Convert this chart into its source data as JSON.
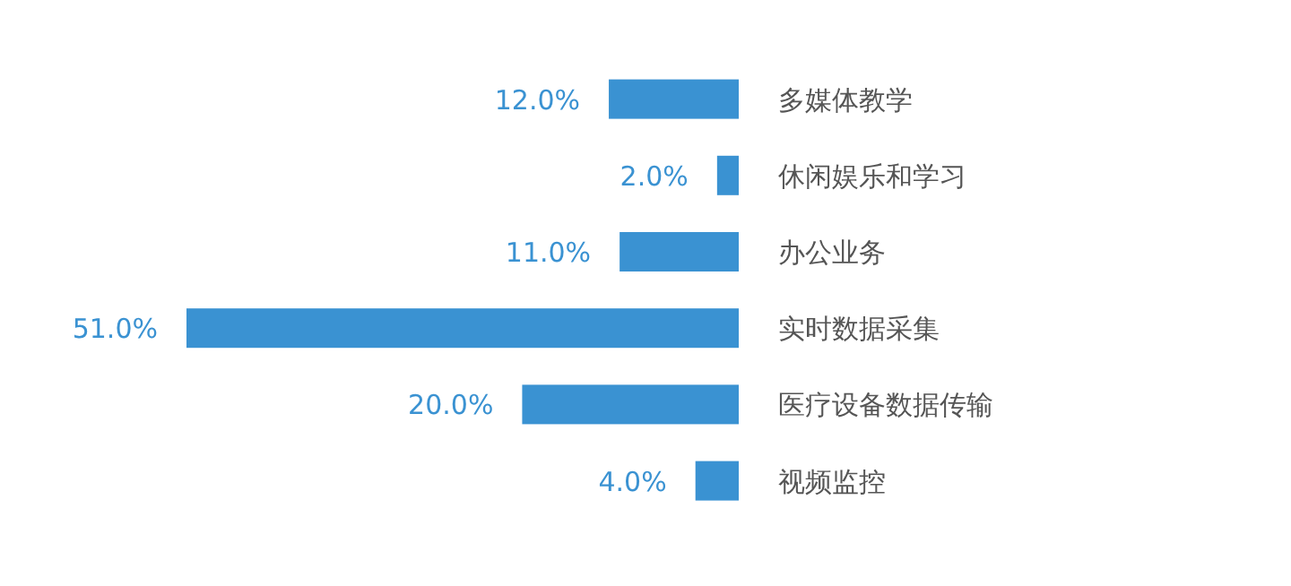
{
  "chart_data": {
    "type": "bar",
    "orientation": "horizontal",
    "categories": [
      "多媒体教学",
      "休闲娱乐和学习",
      "办公业务",
      "实时数据采集",
      "医疗设备数据传输",
      "视频监控"
    ],
    "values": [
      12.0,
      2.0,
      11.0,
      51.0,
      20.0,
      4.0
    ],
    "value_labels": [
      "12.0%",
      "2.0%",
      "11.0%",
      "51.0%",
      "20.0%",
      "4.0%"
    ],
    "color": "#3a92d2"
  }
}
